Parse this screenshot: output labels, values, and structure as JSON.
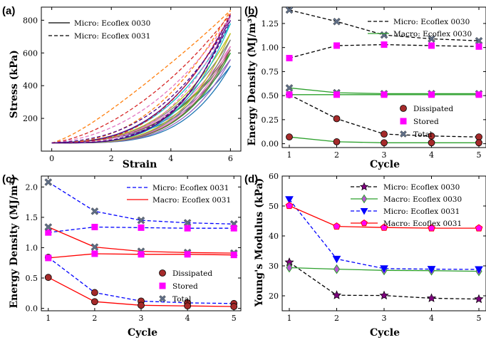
{
  "chart_data": [
    {
      "panel": "(a)",
      "type": "line",
      "xlabel": "Strain",
      "ylabel": "Stress (kPa)",
      "xlim": [
        -0.35,
        6.35
      ],
      "ylim": [
        0,
        880
      ],
      "xticks": [
        0,
        2,
        4,
        6
      ],
      "yticks": [
        200,
        400,
        600,
        800
      ],
      "legend": [
        {
          "name": "Micro: Ecoflex 0030",
          "style": "solid"
        },
        {
          "name": "Micro: Ecoflex 0031",
          "style": "dashed"
        }
      ],
      "curves": [
        {
          "peak": 520,
          "dash": false,
          "color": "#1f77b4",
          "gap": 70,
          "n": 3.2
        },
        {
          "peak": 560,
          "dash": false,
          "color": "#9467bd",
          "gap": 55,
          "n": 3.1
        },
        {
          "peak": 600,
          "dash": false,
          "color": "#2ca02c",
          "gap": 50,
          "n": 3.0
        },
        {
          "peak": 620,
          "dash": false,
          "color": "#8c564b",
          "gap": 45,
          "n": 3.0
        },
        {
          "peak": 640,
          "dash": false,
          "color": "#e377c2",
          "gap": 40,
          "n": 2.9
        },
        {
          "peak": 680,
          "dash": false,
          "color": "#7f7f7f",
          "gap": 40,
          "n": 2.9
        },
        {
          "peak": 720,
          "dash": false,
          "color": "#bcbd22",
          "gap": 35,
          "n": 2.9
        },
        {
          "peak": 780,
          "dash": false,
          "color": "#17becf",
          "gap": 35,
          "n": 2.8
        },
        {
          "peak": 830,
          "dash": false,
          "color": "#4b0082",
          "gap": 30,
          "n": 2.8
        },
        {
          "peak": 860,
          "dash": true,
          "color": "#ff7f0e",
          "gap": 300,
          "n": 1.6
        },
        {
          "peak": 840,
          "dash": true,
          "color": "#d62728",
          "gap": 200,
          "n": 2.0
        },
        {
          "peak": 820,
          "dash": true,
          "color": "#e377c2",
          "gap": 150,
          "n": 2.3
        },
        {
          "peak": 800,
          "dash": true,
          "color": "#4b0082",
          "gap": 80,
          "n": 2.6
        }
      ]
    },
    {
      "panel": "(b)",
      "type": "line",
      "xlabel": "Cycle",
      "ylabel": "Energy Density (MJ/m³)",
      "x": [
        1,
        2,
        3,
        4,
        5
      ],
      "xlim": [
        0.85,
        5.15
      ],
      "ylim": [
        -0.04,
        1.42
      ],
      "yticks": [
        0.0,
        0.25,
        0.5,
        0.75,
        1.0,
        1.25
      ],
      "series": [
        {
          "name": "Micro: Ecoflex 0030",
          "color": "#000000",
          "dash": true,
          "values": {
            "total": [
              1.39,
              1.27,
              1.13,
              1.09,
              1.07
            ],
            "stored": [
              0.89,
              1.02,
              1.03,
              1.02,
              1.01
            ],
            "dissipated": [
              0.51,
              0.26,
              0.1,
              0.08,
              0.07
            ]
          }
        },
        {
          "name": "Macro: Ecoflex 0030",
          "color": "#2ca02c",
          "dash": false,
          "values": {
            "total": [
              0.58,
              0.53,
              0.52,
              0.52,
              0.52
            ],
            "stored": [
              0.51,
              0.51,
              0.51,
              0.51,
              0.51
            ],
            "dissipated": [
              0.07,
              0.02,
              0.01,
              0.01,
              0.01
            ]
          }
        }
      ],
      "marker_legend": [
        "Dissipated",
        "Stored",
        "Total"
      ]
    },
    {
      "panel": "(c)",
      "type": "line",
      "xlabel": "Cycle",
      "ylabel": "Energy Density (MJ/m³)",
      "x": [
        1,
        2,
        3,
        4,
        5
      ],
      "xlim": [
        0.85,
        5.15
      ],
      "ylim": [
        -0.04,
        2.18
      ],
      "yticks": [
        0.0,
        0.5,
        1.0,
        1.5,
        2.0
      ],
      "series": [
        {
          "name": "Micro: Ecoflex 0031",
          "color": "#0000ff",
          "dash": true,
          "values": {
            "total": [
              2.08,
              1.6,
              1.45,
              1.41,
              1.39
            ],
            "stored": [
              1.25,
              1.34,
              1.33,
              1.32,
              1.32
            ],
            "dissipated": [
              0.84,
              0.26,
              0.12,
              0.09,
              0.08
            ]
          }
        },
        {
          "name": "Macro: Ecoflex 0031",
          "color": "#ff0000",
          "dash": false,
          "values": {
            "total": [
              1.34,
              1.01,
              0.94,
              0.92,
              0.91
            ],
            "stored": [
              0.83,
              0.9,
              0.89,
              0.89,
              0.88
            ],
            "dissipated": [
              0.51,
              0.11,
              0.05,
              0.04,
              0.03
            ]
          }
        }
      ],
      "marker_legend": [
        "Dissipated",
        "Stored",
        "Total"
      ]
    },
    {
      "panel": "(d)",
      "type": "line",
      "xlabel": "Cycle",
      "ylabel": "Young's Modulus (kPa)",
      "x": [
        1,
        2,
        3,
        4,
        5
      ],
      "xlim": [
        0.85,
        5.15
      ],
      "ylim": [
        15,
        60
      ],
      "yticks": [
        20,
        30,
        40,
        50,
        60
      ],
      "series": [
        {
          "name": "Micro: Ecoflex 0030",
          "color": "#000000",
          "dash": true,
          "marker": "star",
          "mfill": "#800080",
          "values": [
            31.2,
            20.2,
            20.1,
            19.2,
            18.9
          ]
        },
        {
          "name": "Macro: Ecoflex 0030",
          "color": "#2ca02c",
          "dash": false,
          "marker": "diamond",
          "mfill": "#ba55d3",
          "values": [
            29.4,
            28.9,
            28.5,
            28.4,
            28.2
          ]
        },
        {
          "name": "Micro: Ecoflex 0031",
          "color": "#0000ff",
          "dash": true,
          "marker": "triangle",
          "mfill": "#0000ff",
          "values": [
            52.2,
            32.3,
            29.1,
            28.9,
            28.8
          ]
        },
        {
          "name": "Macro: Ecoflex 0031",
          "color": "#ff0000",
          "dash": false,
          "marker": "pentagon",
          "mfill": "#ff00ff",
          "values": [
            50.1,
            43.2,
            42.8,
            42.6,
            42.6
          ]
        }
      ]
    }
  ]
}
